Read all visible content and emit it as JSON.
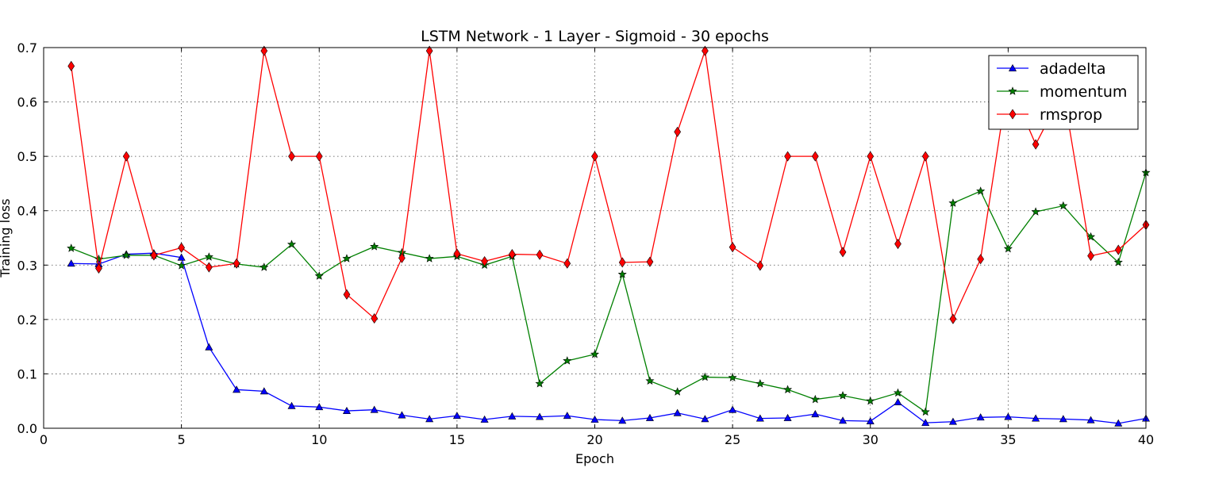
{
  "chart_data": {
    "type": "line",
    "title": "LSTM Network - 1 Layer - Sigmoid - 30 epochs",
    "xlabel": "Epoch",
    "ylabel": "Training loss",
    "xlim": [
      0,
      40
    ],
    "ylim": [
      0.0,
      0.7
    ],
    "xticks": [
      "0",
      "5",
      "10",
      "15",
      "20",
      "25",
      "30",
      "35",
      "40"
    ],
    "yticks": [
      "0.0",
      "0.1",
      "0.2",
      "0.3",
      "0.4",
      "0.5",
      "0.6",
      "0.7"
    ],
    "grid": true,
    "legend_position": "top-right",
    "x": [
      1,
      2,
      3,
      4,
      5,
      6,
      7,
      8,
      9,
      10,
      11,
      12,
      13,
      14,
      15,
      16,
      17,
      18,
      19,
      20,
      21,
      22,
      23,
      24,
      25,
      26,
      27,
      28,
      29,
      30,
      31,
      32,
      33,
      34,
      35,
      36,
      37,
      38,
      39,
      40
    ],
    "series": [
      {
        "name": "adadelta",
        "color": "#0000ff",
        "marker": "triangle",
        "values": [
          0.303,
          0.302,
          0.32,
          0.322,
          0.314,
          0.149,
          0.071,
          0.068,
          0.041,
          0.039,
          0.032,
          0.034,
          0.024,
          0.017,
          0.023,
          0.016,
          0.022,
          0.021,
          0.023,
          0.016,
          0.014,
          0.019,
          0.028,
          0.017,
          0.034,
          0.018,
          0.019,
          0.026,
          0.014,
          0.013,
          0.048,
          0.01,
          0.012,
          0.02,
          0.021,
          0.018,
          0.017,
          0.015,
          0.009,
          0.018
        ]
      },
      {
        "name": "momentum",
        "color": "#008000",
        "marker": "star",
        "values": [
          0.331,
          0.311,
          0.318,
          0.318,
          0.299,
          0.315,
          0.302,
          0.296,
          0.338,
          0.28,
          0.312,
          0.334,
          0.323,
          0.312,
          0.316,
          0.3,
          0.316,
          0.082,
          0.124,
          0.136,
          0.283,
          0.087,
          0.067,
          0.094,
          0.093,
          0.082,
          0.071,
          0.053,
          0.06,
          0.05,
          0.065,
          0.03,
          0.414,
          0.436,
          0.33,
          0.398,
          0.409,
          0.352,
          0.305,
          0.47
        ]
      },
      {
        "name": "rmsprop",
        "color": "#ff0000",
        "marker": "diamond",
        "values": [
          0.666,
          0.294,
          0.5,
          0.318,
          0.332,
          0.296,
          0.303,
          0.694,
          0.5,
          0.5,
          0.246,
          0.202,
          0.313,
          0.694,
          0.321,
          0.307,
          0.32,
          0.319,
          0.303,
          0.5,
          0.305,
          0.306,
          0.545,
          0.694,
          0.333,
          0.299,
          0.5,
          0.5,
          0.324,
          0.5,
          0.339,
          0.5,
          0.201,
          0.311,
          0.64,
          0.522,
          0.62,
          0.317,
          0.328,
          0.374
        ]
      }
    ]
  }
}
